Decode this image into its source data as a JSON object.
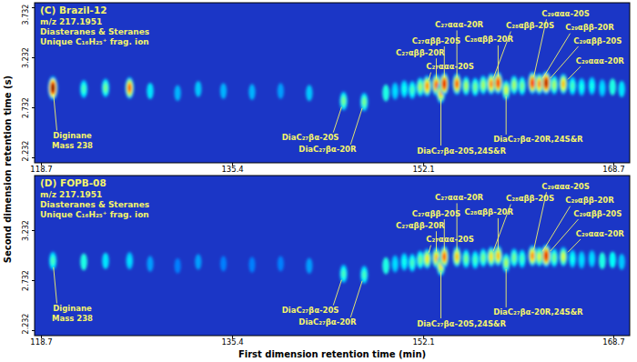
{
  "chart_data": [
    {
      "type": "gcxgc",
      "title": "(C) Brazil-12",
      "subtitle": [
        "m/z 217.1951",
        "Diasteranes & Steranes",
        "Unique C₁₆H₂₅⁺ frag. ion"
      ],
      "y_label": "Second dimension retention time (s)",
      "xlim": [
        118.1,
        170.1
      ],
      "xticks": [
        118.7,
        135.4,
        152.1,
        168.7
      ],
      "ylim": [
        2.182,
        3.782
      ],
      "yticks": [
        2.232,
        2.732,
        3.232,
        3.732
      ],
      "peaks": [
        {
          "x": 119.7,
          "y": 2.93,
          "intensity": 1.0
        },
        {
          "x": 122.4,
          "y": 2.92,
          "intensity": 0.45
        },
        {
          "x": 124.3,
          "y": 2.93,
          "intensity": 0.5
        },
        {
          "x": 126.4,
          "y": 2.93,
          "intensity": 0.8
        },
        {
          "x": 128.2,
          "y": 2.9,
          "intensity": 0.25
        },
        {
          "x": 130.6,
          "y": 2.88,
          "intensity": 0.2
        },
        {
          "x": 132.4,
          "y": 2.92,
          "intensity": 0.22
        },
        {
          "x": 134.6,
          "y": 2.9,
          "intensity": 0.2
        },
        {
          "x": 137.1,
          "y": 2.89,
          "intensity": 0.2
        },
        {
          "x": 139.6,
          "y": 2.9,
          "intensity": 0.18
        },
        {
          "x": 142.1,
          "y": 2.88,
          "intensity": 0.22
        },
        {
          "x": 145.1,
          "y": 2.8,
          "intensity": 0.5
        },
        {
          "x": 146.9,
          "y": 2.79,
          "intensity": 0.5
        },
        {
          "x": 148.8,
          "y": 2.88,
          "intensity": 0.3
        },
        {
          "x": 149.6,
          "y": 2.9,
          "intensity": 0.35
        },
        {
          "x": 150.4,
          "y": 2.92,
          "intensity": 0.4
        },
        {
          "x": 151.1,
          "y": 2.91,
          "intensity": 0.45
        },
        {
          "x": 151.8,
          "y": 2.94,
          "intensity": 0.55
        },
        {
          "x": 152.4,
          "y": 2.95,
          "intensity": 0.75
        },
        {
          "x": 153.2,
          "y": 2.96,
          "intensity": 0.8
        },
        {
          "x": 153.6,
          "y": 2.88,
          "intensity": 0.7
        },
        {
          "x": 153.9,
          "y": 2.97,
          "intensity": 0.9
        },
        {
          "x": 155.0,
          "y": 2.97,
          "intensity": 0.8
        },
        {
          "x": 155.8,
          "y": 2.95,
          "intensity": 0.55
        },
        {
          "x": 156.6,
          "y": 2.94,
          "intensity": 0.5
        },
        {
          "x": 157.3,
          "y": 2.96,
          "intensity": 0.55
        },
        {
          "x": 158.0,
          "y": 2.97,
          "intensity": 0.75
        },
        {
          "x": 158.6,
          "y": 2.98,
          "intensity": 0.85
        },
        {
          "x": 159.3,
          "y": 2.91,
          "intensity": 0.6
        },
        {
          "x": 160.0,
          "y": 2.96,
          "intensity": 0.55
        },
        {
          "x": 160.7,
          "y": 2.95,
          "intensity": 0.5
        },
        {
          "x": 161.6,
          "y": 2.98,
          "intensity": 0.85
        },
        {
          "x": 162.2,
          "y": 2.97,
          "intensity": 0.75
        },
        {
          "x": 162.8,
          "y": 2.98,
          "intensity": 0.95
        },
        {
          "x": 163.5,
          "y": 2.96,
          "intensity": 0.55
        },
        {
          "x": 164.3,
          "y": 2.97,
          "intensity": 0.7
        },
        {
          "x": 165.1,
          "y": 2.95,
          "intensity": 0.45
        },
        {
          "x": 165.9,
          "y": 2.94,
          "intensity": 0.4
        },
        {
          "x": 166.8,
          "y": 2.95,
          "intensity": 0.4
        },
        {
          "x": 167.7,
          "y": 2.93,
          "intensity": 0.35
        },
        {
          "x": 168.6,
          "y": 2.94,
          "intensity": 0.3
        },
        {
          "x": 169.4,
          "y": 2.92,
          "intensity": 0.25
        }
      ],
      "annotations": [
        {
          "text": "Diginane",
          "x": 119.7,
          "y": 2.93,
          "text_x": 121.4,
          "text_y": 2.45
        },
        {
          "text": "Mass 238",
          "text_x": 121.4,
          "text_y": 2.35
        },
        {
          "text": "C₂₇ααα-20R",
          "x": 155.0,
          "y": 2.97,
          "text_x": 155.2,
          "text_y": 3.56
        },
        {
          "text": "C₂₇αββ-20S",
          "x": 153.9,
          "y": 2.97,
          "text_x": 153.2,
          "text_y": 3.4
        },
        {
          "text": "C₂₇αββ-20R",
          "x": 153.2,
          "y": 2.96,
          "text_x": 151.8,
          "text_y": 3.28
        },
        {
          "text": "C₂₇ααα-20S",
          "x": 152.4,
          "y": 2.95,
          "text_x": 154.4,
          "text_y": 3.14
        },
        {
          "text": "C₂₈αββ-20R",
          "x": 158.6,
          "y": 2.98,
          "text_x": 157.8,
          "text_y": 3.41
        },
        {
          "text": "C₂₈αββ-20S",
          "x": 158.0,
          "y": 2.97,
          "text_x": 161.4,
          "text_y": 3.55
        },
        {
          "text": "C₂₉ααα-20S",
          "x": 161.6,
          "y": 2.98,
          "text_x": 164.5,
          "text_y": 3.67
        },
        {
          "text": "C₂₉αββ-20R",
          "x": 162.2,
          "y": 2.97,
          "text_x": 166.6,
          "text_y": 3.53
        },
        {
          "text": "C₂₉αββ-20S",
          "x": 162.8,
          "y": 2.98,
          "text_x": 167.3,
          "text_y": 3.4
        },
        {
          "text": "C₂₉ααα-20R",
          "x": 164.3,
          "y": 2.97,
          "text_x": 167.5,
          "text_y": 3.2
        },
        {
          "text": "DiaC₂₇βα-20S",
          "x": 145.1,
          "y": 2.8,
          "text_x": 142.2,
          "text_y": 2.43
        },
        {
          "text": "DiaC₂₇βα-20R",
          "x": 146.9,
          "y": 2.79,
          "text_x": 143.7,
          "text_y": 2.31
        },
        {
          "text": "DiaC₂₇βα-20S,24S&R",
          "x": 153.6,
          "y": 2.88,
          "text_x": 155.4,
          "text_y": 2.3
        },
        {
          "text": "DiaC₂₇βα-20R,24S&R",
          "x": 159.3,
          "y": 2.91,
          "text_x": 162.1,
          "text_y": 2.41
        }
      ]
    },
    {
      "type": "gcxgc",
      "title": "(D) FOPB-08",
      "subtitle": [
        "m/z 217.1951",
        "Diasteranes & Steranes",
        "Unique C₁₆H₂₅⁺ frag. ion"
      ],
      "x_label": "First dimension retention time (min)",
      "xlim": [
        118.1,
        170.1
      ],
      "xticks": [
        118.7,
        135.4,
        152.1,
        168.7
      ],
      "ylim": [
        2.182,
        3.782
      ],
      "yticks": [
        2.232,
        2.732,
        3.232
      ],
      "peaks": [
        {
          "x": 119.7,
          "y": 2.93,
          "intensity": 0.45
        },
        {
          "x": 122.4,
          "y": 2.92,
          "intensity": 0.3
        },
        {
          "x": 124.3,
          "y": 2.93,
          "intensity": 0.25
        },
        {
          "x": 126.4,
          "y": 2.93,
          "intensity": 0.35
        },
        {
          "x": 128.2,
          "y": 2.9,
          "intensity": 0.18
        },
        {
          "x": 130.6,
          "y": 2.88,
          "intensity": 0.15
        },
        {
          "x": 132.4,
          "y": 2.92,
          "intensity": 0.18
        },
        {
          "x": 134.6,
          "y": 2.9,
          "intensity": 0.15
        },
        {
          "x": 137.1,
          "y": 2.89,
          "intensity": 0.15
        },
        {
          "x": 139.6,
          "y": 2.9,
          "intensity": 0.15
        },
        {
          "x": 142.1,
          "y": 2.88,
          "intensity": 0.18
        },
        {
          "x": 145.1,
          "y": 2.8,
          "intensity": 0.45
        },
        {
          "x": 146.9,
          "y": 2.79,
          "intensity": 0.45
        },
        {
          "x": 148.8,
          "y": 2.88,
          "intensity": 0.3
        },
        {
          "x": 149.6,
          "y": 2.9,
          "intensity": 0.35
        },
        {
          "x": 150.4,
          "y": 2.92,
          "intensity": 0.4
        },
        {
          "x": 151.1,
          "y": 2.91,
          "intensity": 0.45
        },
        {
          "x": 151.8,
          "y": 2.94,
          "intensity": 0.5
        },
        {
          "x": 152.4,
          "y": 2.95,
          "intensity": 0.65
        },
        {
          "x": 153.2,
          "y": 2.96,
          "intensity": 0.7
        },
        {
          "x": 153.6,
          "y": 2.88,
          "intensity": 0.65
        },
        {
          "x": 153.9,
          "y": 2.97,
          "intensity": 0.8
        },
        {
          "x": 155.0,
          "y": 2.97,
          "intensity": 0.7
        },
        {
          "x": 155.8,
          "y": 2.95,
          "intensity": 0.5
        },
        {
          "x": 156.6,
          "y": 2.94,
          "intensity": 0.45
        },
        {
          "x": 157.3,
          "y": 2.96,
          "intensity": 0.5
        },
        {
          "x": 158.0,
          "y": 2.97,
          "intensity": 0.65
        },
        {
          "x": 158.6,
          "y": 2.98,
          "intensity": 0.7
        },
        {
          "x": 159.3,
          "y": 2.91,
          "intensity": 0.55
        },
        {
          "x": 160.0,
          "y": 2.96,
          "intensity": 0.5
        },
        {
          "x": 160.7,
          "y": 2.95,
          "intensity": 0.45
        },
        {
          "x": 161.6,
          "y": 2.98,
          "intensity": 0.75
        },
        {
          "x": 162.2,
          "y": 2.97,
          "intensity": 0.6
        },
        {
          "x": 162.8,
          "y": 2.98,
          "intensity": 0.9
        },
        {
          "x": 163.5,
          "y": 2.96,
          "intensity": 0.5
        },
        {
          "x": 164.3,
          "y": 2.97,
          "intensity": 0.6
        },
        {
          "x": 165.1,
          "y": 2.95,
          "intensity": 0.4
        },
        {
          "x": 165.9,
          "y": 2.94,
          "intensity": 0.35
        },
        {
          "x": 166.8,
          "y": 2.95,
          "intensity": 0.35
        },
        {
          "x": 167.7,
          "y": 2.93,
          "intensity": 0.3
        },
        {
          "x": 168.6,
          "y": 2.94,
          "intensity": 0.28
        },
        {
          "x": 169.4,
          "y": 2.92,
          "intensity": 0.22
        }
      ],
      "annotations": [
        {
          "text": "Diginane",
          "x": 119.7,
          "y": 2.93,
          "text_x": 121.4,
          "text_y": 2.45
        },
        {
          "text": "Mass 238",
          "text_x": 121.4,
          "text_y": 2.35
        },
        {
          "text": "C₂₇ααα-20R",
          "x": 155.0,
          "y": 2.97,
          "text_x": 155.2,
          "text_y": 3.56
        },
        {
          "text": "C₂₇αββ-20S",
          "x": 153.9,
          "y": 2.97,
          "text_x": 153.2,
          "text_y": 3.4
        },
        {
          "text": "C₂₇αββ-20R",
          "x": 153.2,
          "y": 2.96,
          "text_x": 151.8,
          "text_y": 3.28
        },
        {
          "text": "C₂₇ααα-20S",
          "x": 152.4,
          "y": 2.95,
          "text_x": 154.4,
          "text_y": 3.14
        },
        {
          "text": "C₂₈αββ-20R",
          "x": 158.6,
          "y": 2.98,
          "text_x": 157.8,
          "text_y": 3.41
        },
        {
          "text": "C₂₈αββ-20S",
          "x": 158.0,
          "y": 2.97,
          "text_x": 161.4,
          "text_y": 3.55
        },
        {
          "text": "C₂₉ααα-20S",
          "x": 161.6,
          "y": 2.98,
          "text_x": 164.5,
          "text_y": 3.67
        },
        {
          "text": "C₂₉αββ-20R",
          "x": 162.2,
          "y": 2.97,
          "text_x": 166.6,
          "text_y": 3.53
        },
        {
          "text": "C₂₉αββ-20S",
          "x": 162.8,
          "y": 2.98,
          "text_x": 167.3,
          "text_y": 3.4
        },
        {
          "text": "C₂₉ααα-20R",
          "x": 164.3,
          "y": 2.97,
          "text_x": 167.5,
          "text_y": 3.2
        },
        {
          "text": "DiaC₂₇βα-20S",
          "x": 145.1,
          "y": 2.8,
          "text_x": 142.2,
          "text_y": 2.43
        },
        {
          "text": "DiaC₂₇βα-20R",
          "x": 146.9,
          "y": 2.79,
          "text_x": 143.7,
          "text_y": 2.31
        },
        {
          "text": "DiaC₂₇βα-20S,24S&R",
          "x": 153.6,
          "y": 2.88,
          "text_x": 155.4,
          "text_y": 2.3
        },
        {
          "text": "DiaC₂₇βα-20R,24S&R",
          "x": 159.3,
          "y": 2.91,
          "text_x": 162.1,
          "text_y": 2.41
        }
      ]
    }
  ]
}
